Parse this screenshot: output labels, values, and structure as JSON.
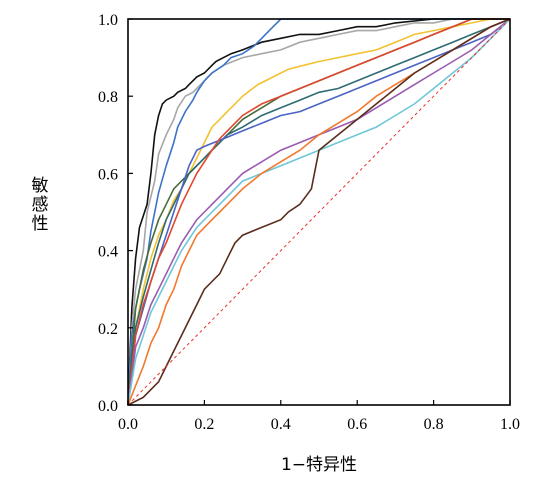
{
  "chart_data": {
    "type": "line",
    "title": "",
    "xlabel": "1−特异性",
    "ylabel": "敏感性",
    "xlim": [
      0,
      1
    ],
    "ylim": [
      0,
      1
    ],
    "x_ticks": [
      "0.0",
      "0.2",
      "0.4",
      "0.6",
      "0.8",
      "1.0"
    ],
    "y_ticks": [
      "0.0",
      "0.2",
      "0.4",
      "0.6",
      "0.8",
      "1.0"
    ],
    "grid": false,
    "legend": "none",
    "reference_line": {
      "x": [
        0,
        1
      ],
      "y": [
        0,
        1
      ],
      "color": "#e8302a",
      "style": "dashed"
    },
    "series": [
      {
        "color": "#111111",
        "x": [
          0,
          0.01,
          0.02,
          0.03,
          0.05,
          0.06,
          0.07,
          0.08,
          0.09,
          0.1,
          0.12,
          0.13,
          0.15,
          0.16,
          0.17,
          0.18,
          0.2,
          0.22,
          0.23,
          0.25,
          0.27,
          0.3,
          0.35,
          0.4,
          0.45,
          0.5,
          0.55,
          0.6,
          0.65,
          0.7,
          0.8,
          1.0
        ],
        "y": [
          0,
          0.25,
          0.38,
          0.46,
          0.52,
          0.6,
          0.7,
          0.75,
          0.78,
          0.79,
          0.8,
          0.81,
          0.82,
          0.83,
          0.84,
          0.85,
          0.86,
          0.88,
          0.89,
          0.9,
          0.91,
          0.92,
          0.94,
          0.95,
          0.96,
          0.96,
          0.97,
          0.98,
          0.98,
          0.99,
          1.0,
          1.0
        ]
      },
      {
        "color": "#a7a7a7",
        "x": [
          0,
          0.01,
          0.02,
          0.04,
          0.05,
          0.07,
          0.08,
          0.1,
          0.12,
          0.13,
          0.15,
          0.17,
          0.18,
          0.2,
          0.22,
          0.25,
          0.3,
          0.35,
          0.4,
          0.45,
          0.5,
          0.55,
          0.6,
          0.65,
          0.7,
          0.75,
          0.8,
          0.85,
          0.9,
          1.0
        ],
        "y": [
          0,
          0.2,
          0.3,
          0.4,
          0.5,
          0.58,
          0.65,
          0.7,
          0.74,
          0.77,
          0.8,
          0.81,
          0.82,
          0.84,
          0.86,
          0.88,
          0.9,
          0.91,
          0.92,
          0.94,
          0.95,
          0.96,
          0.97,
          0.97,
          0.98,
          0.99,
          0.99,
          1.0,
          1.0,
          1.0
        ]
      },
      {
        "color": "#3b73c8",
        "x": [
          0,
          0.01,
          0.02,
          0.03,
          0.05,
          0.06,
          0.08,
          0.1,
          0.12,
          0.13,
          0.15,
          0.17,
          0.18,
          0.2,
          0.22,
          0.25,
          0.27,
          0.3,
          0.33,
          0.35,
          0.37,
          0.4,
          0.45,
          0.5,
          0.6,
          0.7,
          0.8,
          0.9,
          1.0
        ],
        "y": [
          0,
          0.18,
          0.25,
          0.3,
          0.38,
          0.45,
          0.55,
          0.62,
          0.68,
          0.72,
          0.76,
          0.79,
          0.81,
          0.84,
          0.86,
          0.88,
          0.9,
          0.91,
          0.93,
          0.95,
          0.97,
          1.0,
          1.0,
          1.0,
          1.0,
          1.0,
          1.0,
          1.0,
          1.0
        ]
      },
      {
        "color": "#f2c230",
        "x": [
          0,
          0.02,
          0.04,
          0.06,
          0.08,
          0.1,
          0.12,
          0.14,
          0.16,
          0.18,
          0.2,
          0.22,
          0.24,
          0.26,
          0.28,
          0.3,
          0.34,
          0.38,
          0.42,
          0.46,
          0.5,
          0.55,
          0.6,
          0.65,
          0.7,
          0.75,
          0.8,
          0.85,
          0.9,
          0.95,
          1.0
        ],
        "y": [
          0,
          0.2,
          0.3,
          0.38,
          0.44,
          0.48,
          0.53,
          0.56,
          0.6,
          0.64,
          0.68,
          0.72,
          0.74,
          0.76,
          0.78,
          0.8,
          0.83,
          0.85,
          0.87,
          0.88,
          0.89,
          0.9,
          0.91,
          0.92,
          0.94,
          0.96,
          0.97,
          0.98,
          0.99,
          1.0,
          1.0
        ]
      },
      {
        "color": "#4a6b3a",
        "x": [
          0,
          0.02,
          0.04,
          0.06,
          0.08,
          0.1,
          0.12,
          0.14,
          0.16,
          0.18,
          0.2,
          0.22,
          0.24,
          0.26,
          0.28,
          0.3,
          0.35,
          0.4,
          0.45,
          0.5,
          0.55,
          0.6,
          0.65,
          0.7,
          0.75,
          0.8,
          0.85,
          0.9,
          1.0
        ],
        "y": [
          0,
          0.25,
          0.35,
          0.42,
          0.48,
          0.52,
          0.56,
          0.58,
          0.6,
          0.62,
          0.64,
          0.66,
          0.68,
          0.7,
          0.72,
          0.74,
          0.77,
          0.8,
          0.82,
          0.84,
          0.86,
          0.88,
          0.9,
          0.92,
          0.94,
          0.96,
          0.98,
          1.0,
          1.0
        ]
      },
      {
        "color": "#2f6b73",
        "x": [
          0,
          0.02,
          0.04,
          0.06,
          0.08,
          0.1,
          0.12,
          0.14,
          0.16,
          0.18,
          0.2,
          0.22,
          0.24,
          0.26,
          0.28,
          0.3,
          0.35,
          0.4,
          0.45,
          0.5,
          0.55,
          0.6,
          0.65,
          0.7,
          0.75,
          0.8,
          0.85,
          0.9,
          0.95,
          1.0
        ],
        "y": [
          0,
          0.2,
          0.28,
          0.35,
          0.42,
          0.48,
          0.52,
          0.56,
          0.6,
          0.62,
          0.64,
          0.66,
          0.68,
          0.7,
          0.71,
          0.72,
          0.75,
          0.77,
          0.79,
          0.81,
          0.82,
          0.84,
          0.86,
          0.88,
          0.9,
          0.92,
          0.94,
          0.96,
          0.98,
          1.0
        ]
      },
      {
        "color": "#4b63c6",
        "x": [
          0,
          0.02,
          0.04,
          0.06,
          0.08,
          0.1,
          0.12,
          0.14,
          0.16,
          0.18,
          0.2,
          0.25,
          0.3,
          0.35,
          0.4,
          0.45,
          0.5,
          0.55,
          0.6,
          0.65,
          0.7,
          0.75,
          0.8,
          0.85,
          0.9,
          0.95,
          1.0
        ],
        "y": [
          0,
          0.18,
          0.25,
          0.32,
          0.38,
          0.44,
          0.5,
          0.56,
          0.62,
          0.66,
          0.67,
          0.69,
          0.71,
          0.73,
          0.75,
          0.76,
          0.78,
          0.8,
          0.82,
          0.84,
          0.86,
          0.88,
          0.9,
          0.92,
          0.94,
          0.96,
          1.0
        ]
      },
      {
        "color": "#e0482e",
        "x": [
          0,
          0.02,
          0.04,
          0.06,
          0.08,
          0.1,
          0.12,
          0.14,
          0.16,
          0.18,
          0.2,
          0.22,
          0.24,
          0.26,
          0.28,
          0.3,
          0.35,
          0.4,
          0.45,
          0.5,
          0.55,
          0.6,
          0.65,
          0.7,
          0.75,
          0.8,
          0.85,
          0.9,
          1.0
        ],
        "y": [
          0,
          0.18,
          0.26,
          0.32,
          0.38,
          0.42,
          0.47,
          0.52,
          0.56,
          0.6,
          0.63,
          0.66,
          0.69,
          0.71,
          0.73,
          0.75,
          0.78,
          0.8,
          0.82,
          0.84,
          0.86,
          0.88,
          0.9,
          0.92,
          0.94,
          0.96,
          0.98,
          1.0,
          1.0
        ]
      },
      {
        "color": "#9a5bb0",
        "x": [
          0,
          0.02,
          0.04,
          0.06,
          0.08,
          0.1,
          0.12,
          0.14,
          0.16,
          0.18,
          0.2,
          0.22,
          0.24,
          0.26,
          0.28,
          0.3,
          0.35,
          0.4,
          0.45,
          0.5,
          0.55,
          0.6,
          0.65,
          0.7,
          0.75,
          0.8,
          0.85,
          0.9,
          0.95,
          1.0
        ],
        "y": [
          0,
          0.15,
          0.2,
          0.26,
          0.3,
          0.34,
          0.38,
          0.42,
          0.45,
          0.48,
          0.5,
          0.52,
          0.54,
          0.56,
          0.58,
          0.6,
          0.63,
          0.66,
          0.68,
          0.7,
          0.72,
          0.74,
          0.77,
          0.8,
          0.83,
          0.86,
          0.89,
          0.92,
          0.96,
          1.0
        ]
      },
      {
        "color": "#6fc7d7",
        "x": [
          0,
          0.02,
          0.04,
          0.06,
          0.08,
          0.1,
          0.12,
          0.14,
          0.16,
          0.18,
          0.2,
          0.22,
          0.24,
          0.26,
          0.28,
          0.3,
          0.35,
          0.4,
          0.45,
          0.5,
          0.55,
          0.6,
          0.65,
          0.7,
          0.75,
          0.8,
          0.85,
          0.9,
          0.95,
          1.0
        ],
        "y": [
          0,
          0.12,
          0.18,
          0.24,
          0.28,
          0.32,
          0.36,
          0.4,
          0.43,
          0.46,
          0.48,
          0.5,
          0.52,
          0.54,
          0.56,
          0.58,
          0.6,
          0.62,
          0.64,
          0.66,
          0.68,
          0.7,
          0.72,
          0.75,
          0.78,
          0.82,
          0.86,
          0.9,
          0.95,
          1.0
        ]
      },
      {
        "color": "#f2792e",
        "x": [
          0,
          0.02,
          0.04,
          0.06,
          0.08,
          0.1,
          0.12,
          0.14,
          0.16,
          0.18,
          0.2,
          0.22,
          0.24,
          0.26,
          0.28,
          0.3,
          0.35,
          0.4,
          0.45,
          0.5,
          0.55,
          0.6,
          0.65,
          0.7,
          0.75,
          0.8,
          0.85,
          0.9,
          0.95,
          1.0
        ],
        "y": [
          0,
          0.05,
          0.1,
          0.16,
          0.2,
          0.26,
          0.3,
          0.36,
          0.4,
          0.44,
          0.46,
          0.48,
          0.5,
          0.52,
          0.54,
          0.56,
          0.6,
          0.63,
          0.66,
          0.7,
          0.73,
          0.76,
          0.8,
          0.83,
          0.86,
          0.89,
          0.92,
          0.95,
          0.98,
          1.0
        ]
      },
      {
        "color": "#5a2d1d",
        "x": [
          0,
          0.04,
          0.06,
          0.08,
          0.1,
          0.12,
          0.14,
          0.16,
          0.18,
          0.2,
          0.22,
          0.24,
          0.26,
          0.28,
          0.3,
          0.35,
          0.4,
          0.42,
          0.45,
          0.48,
          0.5,
          0.55,
          0.6,
          0.65,
          0.7,
          0.75,
          0.8,
          0.85,
          0.9,
          0.95,
          1.0
        ],
        "y": [
          0,
          0.02,
          0.04,
          0.06,
          0.1,
          0.14,
          0.18,
          0.22,
          0.26,
          0.3,
          0.32,
          0.34,
          0.38,
          0.42,
          0.44,
          0.46,
          0.48,
          0.5,
          0.52,
          0.56,
          0.66,
          0.7,
          0.74,
          0.78,
          0.82,
          0.86,
          0.89,
          0.92,
          0.95,
          0.98,
          1.0
        ]
      }
    ]
  }
}
